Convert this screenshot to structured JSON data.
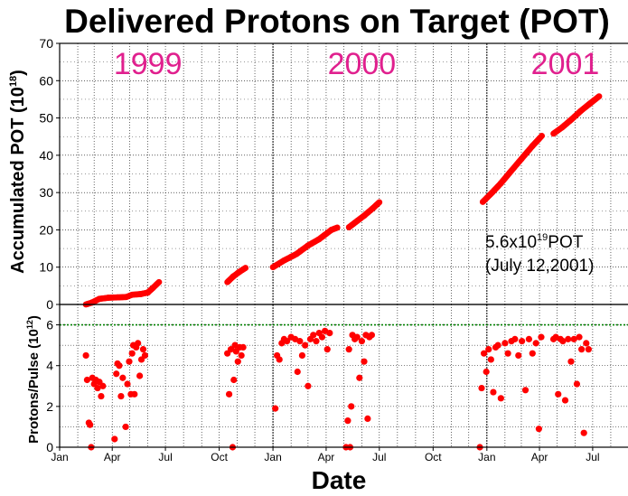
{
  "chart_data": [
    {
      "type": "scatter",
      "title": "Delivered Protons on Target (POT)",
      "ylabel": "Accumulated POT (10",
      "ylabel_exp": "18",
      "ylabel_close": ")",
      "ylim": [
        0,
        70
      ],
      "yticks": [
        "0",
        "10",
        "20",
        "30",
        "40",
        "50",
        "60",
        "70"
      ],
      "grid": true,
      "year_labels": [
        {
          "text": "1999",
          "x": "1999-06-01"
        },
        {
          "text": "2000",
          "x": "2000-06-01"
        },
        {
          "text": "2001",
          "x": "2001-05-15"
        }
      ],
      "annotation": {
        "line1_pre": "5.6x10",
        "line1_exp": "19",
        "line1_post": "POT",
        "line2": "(July 12,2001)"
      },
      "color": "#ff0000",
      "segments": [
        {
          "x": [
            "1999-02-15",
            "1999-02-25",
            "1999-03-10",
            "1999-03-25",
            "1999-04-10",
            "1999-04-25",
            "1999-05-05",
            "1999-05-20",
            "1999-06-01",
            "1999-06-10",
            "1999-06-20"
          ],
          "y": [
            0,
            0.5,
            1.5,
            1.8,
            1.9,
            2.0,
            2.6,
            2.8,
            3.2,
            4.5,
            6.0
          ]
        },
        {
          "x": [
            "1999-10-15",
            "1999-10-25",
            "1999-11-05",
            "1999-11-15"
          ],
          "y": [
            6.0,
            7.5,
            8.8,
            9.8
          ]
        },
        {
          "x": [
            "2000-01-01",
            "2000-01-20",
            "2000-02-10",
            "2000-03-01",
            "2000-03-20",
            "2000-04-10",
            "2000-04-20"
          ],
          "y": [
            10.0,
            11.8,
            13.5,
            15.8,
            17.5,
            20.0,
            20.6
          ]
        },
        {
          "x": [
            "2000-05-10",
            "2000-05-25",
            "2000-06-05",
            "2000-06-20",
            "2000-07-01"
          ],
          "y": [
            20.7,
            22.5,
            23.8,
            25.8,
            27.4
          ]
        },
        {
          "x": [
            "2000-12-25",
            "2001-01-10",
            "2001-01-25",
            "2001-02-10",
            "2001-03-01",
            "2001-03-20",
            "2001-04-05"
          ],
          "y": [
            27.5,
            30.0,
            32.5,
            35.5,
            39.0,
            42.5,
            45.2
          ]
        },
        {
          "x": [
            "2001-04-25",
            "2001-05-10",
            "2001-05-25",
            "2001-06-10",
            "2001-06-25",
            "2001-07-12"
          ],
          "y": [
            45.8,
            47.5,
            49.5,
            51.8,
            53.7,
            55.8
          ]
        }
      ]
    },
    {
      "type": "scatter",
      "ylabel": "Protons/Pulse (10",
      "ylabel_exp": "12",
      "ylabel_close": ")",
      "xlabel": "Date",
      "ylim": [
        0,
        7
      ],
      "yticks": [
        "0",
        "2",
        "4",
        "6"
      ],
      "reference_line": {
        "y": 6,
        "color": "#008000",
        "style": "dotted"
      },
      "x_axis": {
        "start": "1999-01-01",
        "end": "2001-09-01",
        "ticks": [
          {
            "label": "Jan",
            "x": "1999-01-01"
          },
          {
            "label": "Apr",
            "x": "1999-04-01"
          },
          {
            "label": "Jul",
            "x": "1999-07-01"
          },
          {
            "label": "Oct",
            "x": "1999-10-01"
          },
          {
            "label": "Jan",
            "x": "2000-01-01"
          },
          {
            "label": "Apr",
            "x": "2000-04-01"
          },
          {
            "label": "Jul",
            "x": "2000-07-01"
          },
          {
            "label": "Oct",
            "x": "2000-10-01"
          },
          {
            "label": "Jan",
            "x": "2001-01-01"
          },
          {
            "label": "Apr",
            "x": "2001-04-01"
          },
          {
            "label": "Jul",
            "x": "2001-07-01"
          }
        ],
        "year_boundaries": [
          "2000-01-01",
          "2001-01-01"
        ]
      },
      "color": "#ff0000",
      "points": [
        {
          "x": "1999-02-15",
          "y": 4.5
        },
        {
          "x": "1999-02-17",
          "y": 3.3
        },
        {
          "x": "1999-02-20",
          "y": 1.2
        },
        {
          "x": "1999-02-22",
          "y": 1.1
        },
        {
          "x": "1999-02-24",
          "y": 0.0
        },
        {
          "x": "1999-02-26",
          "y": 3.4
        },
        {
          "x": "1999-03-01",
          "y": 3.1
        },
        {
          "x": "1999-03-04",
          "y": 3.3
        },
        {
          "x": "1999-03-07",
          "y": 2.9
        },
        {
          "x": "1999-03-10",
          "y": 3.2
        },
        {
          "x": "1999-03-13",
          "y": 2.5
        },
        {
          "x": "1999-03-16",
          "y": 3.0
        },
        {
          "x": "1999-04-05",
          "y": 0.4
        },
        {
          "x": "1999-04-08",
          "y": 3.6
        },
        {
          "x": "1999-04-10",
          "y": 4.1
        },
        {
          "x": "1999-04-13",
          "y": 4.0
        },
        {
          "x": "1999-04-16",
          "y": 2.5
        },
        {
          "x": "1999-04-19",
          "y": 3.4
        },
        {
          "x": "1999-04-24",
          "y": 1.0
        },
        {
          "x": "1999-04-27",
          "y": 3.1
        },
        {
          "x": "1999-04-30",
          "y": 4.2
        },
        {
          "x": "1999-05-03",
          "y": 2.6
        },
        {
          "x": "1999-05-05",
          "y": 4.6
        },
        {
          "x": "1999-05-07",
          "y": 5.0
        },
        {
          "x": "1999-05-09",
          "y": 2.6
        },
        {
          "x": "1999-05-12",
          "y": 4.9
        },
        {
          "x": "1999-05-15",
          "y": 5.1
        },
        {
          "x": "1999-05-18",
          "y": 3.5
        },
        {
          "x": "1999-05-21",
          "y": 4.3
        },
        {
          "x": "1999-05-24",
          "y": 4.8
        },
        {
          "x": "1999-05-27",
          "y": 4.5
        },
        {
          "x": "1999-10-15",
          "y": 4.6
        },
        {
          "x": "1999-10-18",
          "y": 2.6
        },
        {
          "x": "1999-10-21",
          "y": 4.8
        },
        {
          "x": "1999-10-24",
          "y": 0.0
        },
        {
          "x": "1999-10-26",
          "y": 3.3
        },
        {
          "x": "1999-10-28",
          "y": 5.0
        },
        {
          "x": "1999-10-30",
          "y": 4.7
        },
        {
          "x": "1999-11-02",
          "y": 4.2
        },
        {
          "x": "1999-11-05",
          "y": 4.9
        },
        {
          "x": "1999-11-08",
          "y": 4.5
        },
        {
          "x": "1999-11-11",
          "y": 4.9
        },
        {
          "x": "2000-01-05",
          "y": 1.9
        },
        {
          "x": "2000-01-08",
          "y": 4.5
        },
        {
          "x": "2000-01-12",
          "y": 4.3
        },
        {
          "x": "2000-01-16",
          "y": 5.1
        },
        {
          "x": "2000-01-20",
          "y": 5.3
        },
        {
          "x": "2000-01-25",
          "y": 5.2
        },
        {
          "x": "2000-02-01",
          "y": 5.4
        },
        {
          "x": "2000-02-08",
          "y": 5.3
        },
        {
          "x": "2000-02-12",
          "y": 3.7
        },
        {
          "x": "2000-02-16",
          "y": 5.2
        },
        {
          "x": "2000-02-20",
          "y": 4.5
        },
        {
          "x": "2000-02-25",
          "y": 5.0
        },
        {
          "x": "2000-03-01",
          "y": 3.0
        },
        {
          "x": "2000-03-05",
          "y": 5.3
        },
        {
          "x": "2000-03-10",
          "y": 5.5
        },
        {
          "x": "2000-03-15",
          "y": 5.2
        },
        {
          "x": "2000-03-20",
          "y": 5.6
        },
        {
          "x": "2000-03-25",
          "y": 5.4
        },
        {
          "x": "2000-03-30",
          "y": 5.7
        },
        {
          "x": "2000-04-03",
          "y": 4.8
        },
        {
          "x": "2000-04-07",
          "y": 5.6
        },
        {
          "x": "2000-05-05",
          "y": 0.0
        },
        {
          "x": "2000-05-08",
          "y": 1.3
        },
        {
          "x": "2000-05-10",
          "y": 4.8
        },
        {
          "x": "2000-05-12",
          "y": 0.0
        },
        {
          "x": "2000-05-14",
          "y": 2.0
        },
        {
          "x": "2000-05-16",
          "y": 5.5
        },
        {
          "x": "2000-05-20",
          "y": 5.3
        },
        {
          "x": "2000-05-24",
          "y": 5.4
        },
        {
          "x": "2000-05-28",
          "y": 3.4
        },
        {
          "x": "2000-06-01",
          "y": 5.2
        },
        {
          "x": "2000-06-05",
          "y": 4.2
        },
        {
          "x": "2000-06-08",
          "y": 5.5
        },
        {
          "x": "2000-06-11",
          "y": 1.4
        },
        {
          "x": "2000-06-14",
          "y": 5.4
        },
        {
          "x": "2000-06-18",
          "y": 5.5
        },
        {
          "x": "2000-12-20",
          "y": 0.0
        },
        {
          "x": "2000-12-23",
          "y": 2.9
        },
        {
          "x": "2000-12-27",
          "y": 4.6
        },
        {
          "x": "2000-12-31",
          "y": 3.7
        },
        {
          "x": "2001-01-04",
          "y": 4.8
        },
        {
          "x": "2001-01-08",
          "y": 4.3
        },
        {
          "x": "2001-01-12",
          "y": 2.7
        },
        {
          "x": "2001-01-16",
          "y": 4.9
        },
        {
          "x": "2001-01-20",
          "y": 5.0
        },
        {
          "x": "2001-01-25",
          "y": 2.4
        },
        {
          "x": "2001-02-01",
          "y": 5.1
        },
        {
          "x": "2001-02-06",
          "y": 4.6
        },
        {
          "x": "2001-02-12",
          "y": 5.2
        },
        {
          "x": "2001-02-18",
          "y": 5.3
        },
        {
          "x": "2001-02-24",
          "y": 4.5
        },
        {
          "x": "2001-03-02",
          "y": 5.2
        },
        {
          "x": "2001-03-08",
          "y": 2.8
        },
        {
          "x": "2001-03-14",
          "y": 5.3
        },
        {
          "x": "2001-03-20",
          "y": 4.6
        },
        {
          "x": "2001-03-26",
          "y": 5.1
        },
        {
          "x": "2001-03-31",
          "y": 0.9
        },
        {
          "x": "2001-04-04",
          "y": 5.4
        },
        {
          "x": "2001-04-25",
          "y": 5.3
        },
        {
          "x": "2001-04-29",
          "y": 5.4
        },
        {
          "x": "2001-05-03",
          "y": 2.6
        },
        {
          "x": "2001-05-07",
          "y": 5.3
        },
        {
          "x": "2001-05-11",
          "y": 5.2
        },
        {
          "x": "2001-05-15",
          "y": 2.3
        },
        {
          "x": "2001-05-20",
          "y": 5.3
        },
        {
          "x": "2001-05-25",
          "y": 4.2
        },
        {
          "x": "2001-05-30",
          "y": 5.3
        },
        {
          "x": "2001-06-04",
          "y": 3.1
        },
        {
          "x": "2001-06-08",
          "y": 5.4
        },
        {
          "x": "2001-06-12",
          "y": 4.8
        },
        {
          "x": "2001-06-16",
          "y": 0.7
        },
        {
          "x": "2001-06-20",
          "y": 5.1
        },
        {
          "x": "2001-06-24",
          "y": 4.8
        }
      ]
    }
  ]
}
